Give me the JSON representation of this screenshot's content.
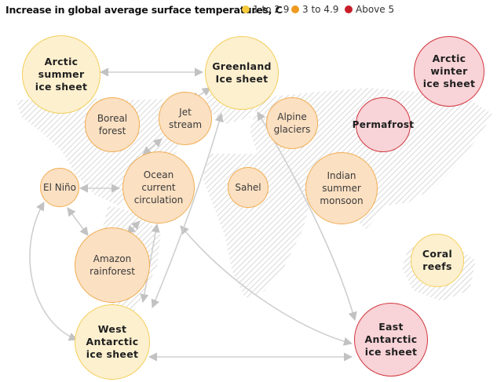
{
  "header": {
    "title": "Increase in global average surface temperatures, C",
    "legend": [
      {
        "label": "1 to 2.9",
        "color": "#f5c93a"
      },
      {
        "label": "3 to 4.9",
        "color": "#ef9a1e"
      },
      {
        "label": "Above 5",
        "color": "#c81e2a"
      }
    ]
  },
  "nodes": {
    "arctic_summer_ice_sheet": {
      "label": "Arctic\nsummer\nice sheet",
      "category": "1 to 2.9"
    },
    "greenland_ice_sheet": {
      "label": "Greenland\nIce sheet",
      "category": "1 to 2.9"
    },
    "arctic_winter_ice_sheet": {
      "label": "Arctic\nwinter\nice sheet",
      "category": "Above 5"
    },
    "boreal_forest": {
      "label": "Boreal\nforest",
      "category": "3 to 4.9"
    },
    "jet_stream": {
      "label": "Jet\nstream",
      "category": "3 to 4.9"
    },
    "alpine_glaciers": {
      "label": "Alpine\nglaciers",
      "category": "3 to 4.9"
    },
    "permafrost": {
      "label": "Permafrost",
      "category": "Above 5"
    },
    "el_nino": {
      "label": "El Niño",
      "category": "3 to 4.9"
    },
    "ocean_current_circulation": {
      "label": "Ocean\ncurrent\ncirculation",
      "category": "3 to 4.9"
    },
    "sahel": {
      "label": "Sahel",
      "category": "3 to 4.9"
    },
    "indian_summer_monsoon": {
      "label": "Indian\nsummer\nmonsoon",
      "category": "3 to 4.9"
    },
    "amazon_rainforest": {
      "label": "Amazon\nrainforest",
      "category": "3 to 4.9"
    },
    "coral_reefs": {
      "label": "Coral\nreefs",
      "category": "1 to 2.9"
    },
    "west_antarctic_ice_sheet": {
      "label": "West\nAntarctic\nice sheet",
      "category": "1 to 2.9"
    },
    "east_antarctic_ice_sheet": {
      "label": "East\nAntarctic\nice sheet",
      "category": "Above 5"
    }
  },
  "links": [
    {
      "from": "arctic_summer_ice_sheet",
      "to": "greenland_ice_sheet"
    },
    {
      "from": "greenland_ice_sheet",
      "to": "jet_stream"
    },
    {
      "from": "el_nino",
      "to": "ocean_current_circulation"
    },
    {
      "from": "el_nino",
      "to": "amazon_rainforest"
    },
    {
      "from": "el_nino",
      "to": "west_antarctic_ice_sheet"
    },
    {
      "from": "ocean_current_circulation",
      "to": "jet_stream"
    },
    {
      "from": "ocean_current_circulation",
      "to": "amazon_rainforest"
    },
    {
      "from": "ocean_current_circulation",
      "to": "west_antarctic_ice_sheet"
    },
    {
      "from": "ocean_current_circulation",
      "to": "east_antarctic_ice_sheet"
    },
    {
      "from": "greenland_ice_sheet",
      "to": "west_antarctic_ice_sheet"
    },
    {
      "from": "greenland_ice_sheet",
      "to": "east_antarctic_ice_sheet"
    },
    {
      "from": "west_antarctic_ice_sheet",
      "to": "east_antarctic_ice_sheet"
    }
  ]
}
